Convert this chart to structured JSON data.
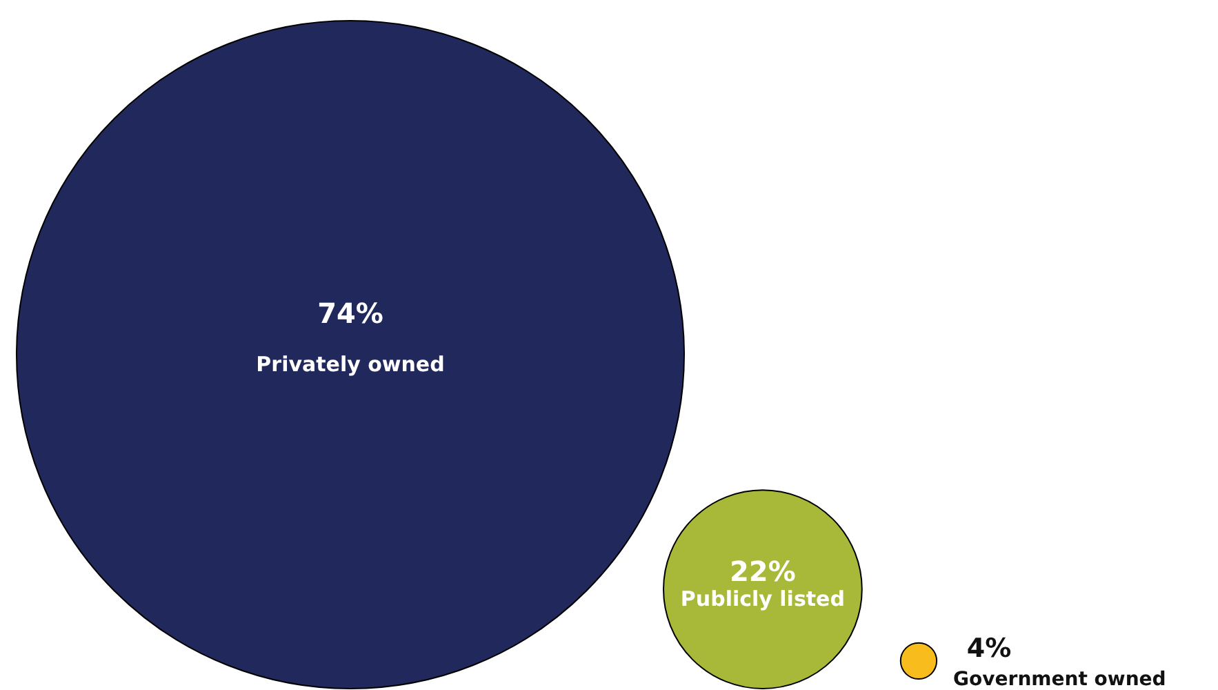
{
  "chart_data": {
    "type": "other",
    "categories": [
      "Privately owned",
      "Publicly listed",
      "Government owned"
    ],
    "values": [
      74,
      22,
      4
    ],
    "value_labels": [
      "74%",
      "22%",
      "4%"
    ],
    "colors": [
      "#20285c",
      "#a8b838",
      "#f8bc1c"
    ]
  }
}
